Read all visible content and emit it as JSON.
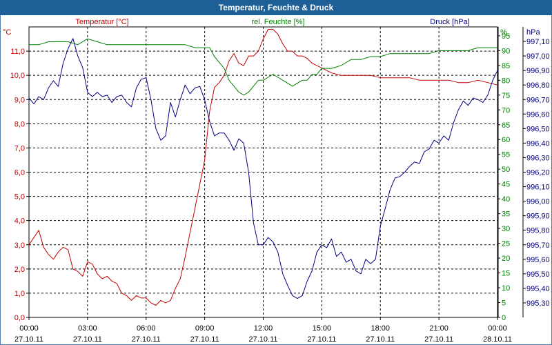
{
  "window": {
    "title": "Temperatur, Feuchte & Druck"
  },
  "chart_data": {
    "type": "line",
    "title": "Temperatur, Feuchte & Druck",
    "x": {
      "ticks": [
        {
          "time": "00:00",
          "date": "27.10.11"
        },
        {
          "time": "03:00",
          "date": "27.10.11"
        },
        {
          "time": "06:00",
          "date": "27.10.11"
        },
        {
          "time": "09:00",
          "date": "27.10.11"
        },
        {
          "time": "12:00",
          "date": "27.10.11"
        },
        {
          "time": "15:00",
          "date": "27.10.11"
        },
        {
          "time": "18:00",
          "date": "27.10.11"
        },
        {
          "time": "21:00",
          "date": "27.10.11"
        },
        {
          "time": "00:00",
          "date": "28.10.11"
        }
      ],
      "range_hours": [
        0,
        24
      ]
    },
    "axes": {
      "temperature": {
        "unit": "°C",
        "title": "Temperatur [°C]",
        "range": [
          0,
          12.0
        ],
        "ticks": [
          "0,0",
          "1,0",
          "2,0",
          "3,0",
          "4,0",
          "5,0",
          "6,0",
          "7,0",
          "8,0",
          "9,0",
          "10,0",
          "11,0"
        ],
        "color": "#c00000"
      },
      "humidity": {
        "unit": "%",
        "title": "rel. Feuchte [%]",
        "range": [
          0,
          98
        ],
        "ticks": [
          "0",
          "5",
          "10",
          "15",
          "20",
          "25",
          "30",
          "35",
          "40",
          "45",
          "50",
          "55",
          "60",
          "65",
          "70",
          "75",
          "80",
          "85",
          "90",
          "95"
        ],
        "color": "#008000"
      },
      "pressure": {
        "unit": "hPa",
        "title": "Druck [hPa]",
        "range": [
          995.2,
          997.2
        ],
        "ticks": [
          "995,30",
          "995,40",
          "995,50",
          "995,60",
          "995,70",
          "995,80",
          "995,90",
          "996,00",
          "996,10",
          "996,20",
          "996,30",
          "996,40",
          "996,50",
          "996,60",
          "996,70",
          "996,80",
          "996,90",
          "997,00",
          "997,10"
        ],
        "color": "#000080"
      }
    },
    "series": [
      {
        "name": "Temperatur [°C]",
        "axis": "temperature",
        "color": "#c00000",
        "x": [
          0,
          0.25,
          0.5,
          0.75,
          1,
          1.25,
          1.5,
          1.75,
          2,
          2.25,
          2.5,
          2.75,
          3,
          3.25,
          3.5,
          3.75,
          4,
          4.25,
          4.5,
          4.75,
          5,
          5.25,
          5.5,
          5.75,
          6,
          6.25,
          6.5,
          6.75,
          7,
          7.25,
          7.5,
          7.75,
          8,
          8.25,
          8.5,
          8.75,
          9,
          9.25,
          9.5,
          9.75,
          10,
          10.25,
          10.5,
          10.75,
          11,
          11.25,
          11.5,
          11.75,
          12,
          12.25,
          12.5,
          12.75,
          13,
          13.25,
          13.5,
          13.75,
          14,
          14.25,
          14.5,
          14.75,
          15,
          15.5,
          16,
          16.5,
          17,
          17.5,
          18,
          18.5,
          19,
          19.5,
          20,
          20.5,
          21,
          21.5,
          22,
          22.5,
          23,
          23.5,
          24
        ],
        "values": [
          3.0,
          3.3,
          3.6,
          2.9,
          2.6,
          2.4,
          2.7,
          2.9,
          2.8,
          2.0,
          1.9,
          1.7,
          2.3,
          2.2,
          1.8,
          1.6,
          1.7,
          1.5,
          1.4,
          1.0,
          0.9,
          0.7,
          0.9,
          0.8,
          0.8,
          0.6,
          0.5,
          0.7,
          0.6,
          0.7,
          1.2,
          1.6,
          2.5,
          3.5,
          4.5,
          5.5,
          6.5,
          8.5,
          9.5,
          9.7,
          10.0,
          10.6,
          10.9,
          10.5,
          10.4,
          10.8,
          10.8,
          11.0,
          11.5,
          11.9,
          11.9,
          11.7,
          11.3,
          11.0,
          11.0,
          10.8,
          10.8,
          10.7,
          10.5,
          10.4,
          10.3,
          10.1,
          10.0,
          10.0,
          10.0,
          10.0,
          9.9,
          9.9,
          9.9,
          9.9,
          9.8,
          9.8,
          9.8,
          9.8,
          9.7,
          9.7,
          9.8,
          9.7,
          9.6
        ]
      },
      {
        "name": "rel. Feuchte [%]",
        "axis": "humidity",
        "color": "#008000",
        "x": [
          0,
          0.5,
          1,
          1.5,
          2,
          2.5,
          3,
          3.5,
          4,
          4.5,
          5,
          5.5,
          6,
          6.5,
          7,
          7.5,
          8,
          8.5,
          9,
          9.25,
          9.5,
          9.75,
          10,
          10.25,
          10.5,
          10.75,
          11,
          11.25,
          11.5,
          11.75,
          12,
          12.25,
          12.5,
          12.75,
          13,
          13.25,
          13.5,
          13.75,
          14,
          14.25,
          14.5,
          14.75,
          15,
          15.5,
          16,
          16.5,
          17,
          17.5,
          18,
          18.5,
          19,
          19.5,
          20,
          20.5,
          21,
          21.5,
          22,
          22.5,
          23,
          23.5,
          24
        ],
        "values": [
          92,
          92,
          93,
          93,
          93,
          92,
          94,
          93,
          92,
          92,
          92,
          92,
          92,
          92,
          92,
          92,
          92,
          91,
          91,
          91,
          88,
          86,
          84,
          80,
          78,
          76,
          75,
          76,
          78,
          80,
          80,
          81,
          82,
          81,
          80,
          79,
          78,
          79,
          80,
          80,
          82,
          82,
          84,
          84,
          85,
          87,
          87,
          88,
          88,
          89,
          89,
          89,
          89,
          89,
          90,
          90,
          90,
          90,
          91,
          91,
          91
        ]
      },
      {
        "name": "Druck [hPa]",
        "axis": "pressure",
        "color": "#000080",
        "x": [
          0,
          0.25,
          0.5,
          0.75,
          1,
          1.25,
          1.5,
          1.75,
          2,
          2.25,
          2.5,
          2.75,
          3,
          3.25,
          3.5,
          3.75,
          4,
          4.25,
          4.5,
          4.75,
          5,
          5.25,
          5.5,
          5.75,
          6,
          6.25,
          6.5,
          6.75,
          7,
          7.25,
          7.5,
          7.75,
          8,
          8.25,
          8.5,
          8.75,
          9,
          9.25,
          9.5,
          9.75,
          10,
          10.25,
          10.5,
          10.75,
          11,
          11.25,
          11.5,
          11.75,
          12,
          12.25,
          12.5,
          12.75,
          13,
          13.25,
          13.5,
          13.75,
          14,
          14.25,
          14.5,
          14.75,
          15,
          15.25,
          15.5,
          15.75,
          16,
          16.25,
          16.5,
          16.75,
          17,
          17.25,
          17.5,
          17.75,
          18,
          18.25,
          18.5,
          18.75,
          19,
          19.25,
          19.5,
          19.75,
          20,
          20.25,
          20.5,
          20.75,
          21,
          21.25,
          21.5,
          21.75,
          22,
          22.25,
          22.5,
          22.75,
          23,
          23.25,
          23.5,
          23.75,
          24
        ],
        "values": [
          996.71,
          996.67,
          996.72,
          996.7,
          996.78,
          996.83,
          996.79,
          996.95,
          997.05,
          997.12,
          997.0,
          996.92,
          996.75,
          996.72,
          996.75,
          996.72,
          996.73,
          996.68,
          996.72,
          996.73,
          996.68,
          996.65,
          996.78,
          996.84,
          996.85,
          996.7,
          996.5,
          996.42,
          996.45,
          996.68,
          996.58,
          996.7,
          996.8,
          996.74,
          996.78,
          996.79,
          996.7,
          996.55,
          996.45,
          996.47,
          996.47,
          996.42,
          996.35,
          996.43,
          996.4,
          996.2,
          995.85,
          995.7,
          995.7,
          995.75,
          995.72,
          995.65,
          995.5,
          995.42,
          995.35,
          995.33,
          995.35,
          995.45,
          995.52,
          995.65,
          995.7,
          995.68,
          995.74,
          995.62,
          995.65,
          995.58,
          995.6,
          995.52,
          995.5,
          995.6,
          995.57,
          995.6,
          995.83,
          995.95,
          996.08,
          996.16,
          996.17,
          996.2,
          996.24,
          996.27,
          996.26,
          996.34,
          996.36,
          996.42,
          996.4,
          996.45,
          996.42,
          996.54,
          996.63,
          996.69,
          996.66,
          996.71,
          996.7,
          996.68,
          996.73,
          996.83,
          996.9
        ]
      }
    ]
  }
}
